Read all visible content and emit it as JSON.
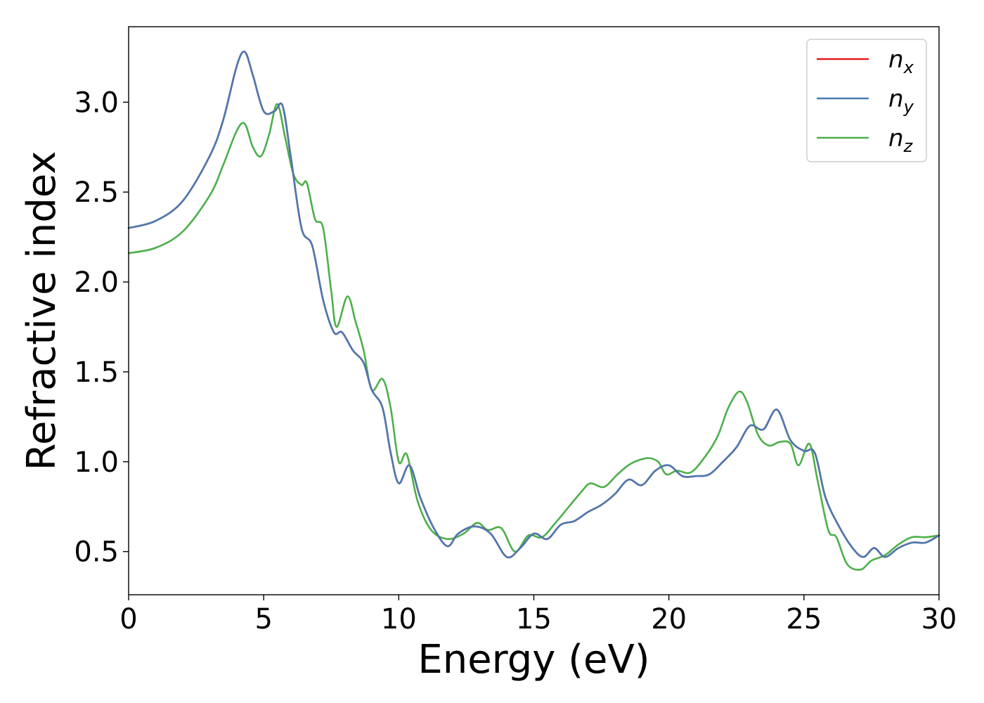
{
  "chart_data": {
    "type": "line",
    "title": "",
    "xlabel": "Energy (eV)",
    "ylabel": "Refractive index",
    "xlim": [
      0,
      30
    ],
    "ylim": [
      0.26,
      3.42
    ],
    "xticks": [
      0,
      5,
      10,
      15,
      20,
      25,
      30
    ],
    "xtick_labels": [
      "0",
      "5",
      "10",
      "15",
      "20",
      "25",
      "30"
    ],
    "yticks": [
      0.5,
      1.0,
      1.5,
      2.0,
      2.5,
      3.0
    ],
    "ytick_labels": [
      "0.5",
      "1.0",
      "1.5",
      "2.0",
      "2.5",
      "3.0"
    ],
    "grid": false,
    "legend_position": "top-right",
    "series": [
      {
        "name": "n",
        "subscript": "x",
        "color": "#e41a1c",
        "x": [
          0,
          1,
          2,
          3,
          3.5,
          4,
          4.3,
          4.6,
          5.0,
          5.4,
          5.7,
          6.0,
          6.4,
          6.8,
          7.2,
          7.6,
          7.9,
          8.3,
          8.7,
          9.0,
          9.4,
          9.7,
          10.0,
          10.4,
          10.8,
          11.3,
          11.8,
          12.2,
          12.8,
          13.4,
          14.0,
          14.5,
          15.0,
          15.5,
          16.0,
          16.5,
          17.0,
          17.5,
          18.0,
          18.5,
          19.0,
          19.5,
          20.0,
          20.5,
          21.0,
          21.5,
          22.0,
          22.5,
          23.0,
          23.5,
          24.0,
          24.5,
          25.0,
          25.4,
          25.8,
          26.3,
          26.8,
          27.2,
          27.6,
          28.0,
          28.5,
          29.0,
          29.5,
          30.0
        ],
        "y": [
          2.3,
          2.34,
          2.45,
          2.7,
          2.9,
          3.2,
          3.28,
          3.15,
          2.95,
          2.95,
          2.98,
          2.7,
          2.3,
          2.2,
          1.9,
          1.72,
          1.72,
          1.62,
          1.55,
          1.4,
          1.3,
          1.05,
          0.88,
          0.98,
          0.8,
          0.63,
          0.53,
          0.6,
          0.64,
          0.6,
          0.47,
          0.52,
          0.6,
          0.57,
          0.65,
          0.67,
          0.72,
          0.76,
          0.82,
          0.9,
          0.87,
          0.95,
          0.98,
          0.92,
          0.92,
          0.93,
          1.0,
          1.08,
          1.2,
          1.18,
          1.29,
          1.12,
          1.06,
          1.05,
          0.8,
          0.64,
          0.52,
          0.47,
          0.52,
          0.47,
          0.52,
          0.55,
          0.55,
          0.59
        ]
      },
      {
        "name": "n",
        "subscript": "y",
        "color": "#4a7ab0",
        "x": [
          0,
          1,
          2,
          3,
          3.5,
          4,
          4.3,
          4.6,
          5.0,
          5.4,
          5.7,
          6.0,
          6.4,
          6.8,
          7.2,
          7.6,
          7.9,
          8.3,
          8.7,
          9.0,
          9.4,
          9.7,
          10.0,
          10.4,
          10.8,
          11.3,
          11.8,
          12.2,
          12.8,
          13.4,
          14.0,
          14.5,
          15.0,
          15.5,
          16.0,
          16.5,
          17.0,
          17.5,
          18.0,
          18.5,
          19.0,
          19.5,
          20.0,
          20.5,
          21.0,
          21.5,
          22.0,
          22.5,
          23.0,
          23.5,
          24.0,
          24.5,
          25.0,
          25.4,
          25.8,
          26.3,
          26.8,
          27.2,
          27.6,
          28.0,
          28.5,
          29.0,
          29.5,
          30.0
        ],
        "y": [
          2.3,
          2.34,
          2.45,
          2.7,
          2.9,
          3.2,
          3.28,
          3.15,
          2.95,
          2.95,
          2.98,
          2.7,
          2.3,
          2.2,
          1.9,
          1.72,
          1.72,
          1.62,
          1.55,
          1.4,
          1.3,
          1.05,
          0.88,
          0.98,
          0.8,
          0.63,
          0.53,
          0.6,
          0.64,
          0.6,
          0.47,
          0.52,
          0.6,
          0.57,
          0.65,
          0.67,
          0.72,
          0.76,
          0.82,
          0.9,
          0.87,
          0.95,
          0.98,
          0.92,
          0.92,
          0.93,
          1.0,
          1.08,
          1.2,
          1.18,
          1.29,
          1.12,
          1.06,
          1.05,
          0.8,
          0.64,
          0.52,
          0.47,
          0.52,
          0.47,
          0.52,
          0.55,
          0.55,
          0.59
        ]
      },
      {
        "name": "n",
        "subscript": "z",
        "color": "#4daf4a",
        "x": [
          0,
          1,
          2,
          3,
          3.5,
          4,
          4.3,
          4.6,
          4.9,
          5.2,
          5.5,
          5.8,
          6.1,
          6.4,
          6.6,
          6.9,
          7.2,
          7.5,
          7.7,
          8.1,
          8.4,
          8.7,
          9.0,
          9.4,
          9.7,
          10.0,
          10.3,
          10.7,
          11.2,
          11.8,
          12.4,
          12.9,
          13.3,
          13.8,
          14.3,
          14.8,
          15.3,
          15.8,
          16.3,
          16.8,
          17.1,
          17.6,
          18.1,
          18.6,
          19.2,
          19.6,
          19.9,
          20.3,
          20.8,
          21.3,
          21.8,
          22.2,
          22.6,
          22.9,
          23.3,
          23.7,
          24.1,
          24.5,
          24.8,
          25.2,
          25.5,
          25.9,
          26.2,
          26.6,
          27.1,
          27.5,
          28.0,
          28.5,
          29.0,
          29.5,
          30.0
        ],
        "y": [
          2.16,
          2.19,
          2.28,
          2.48,
          2.65,
          2.84,
          2.88,
          2.75,
          2.7,
          2.82,
          2.99,
          2.8,
          2.6,
          2.54,
          2.55,
          2.35,
          2.3,
          1.95,
          1.75,
          1.92,
          1.78,
          1.62,
          1.4,
          1.46,
          1.3,
          1.0,
          1.04,
          0.78,
          0.62,
          0.57,
          0.6,
          0.66,
          0.62,
          0.63,
          0.5,
          0.59,
          0.58,
          0.66,
          0.75,
          0.84,
          0.88,
          0.86,
          0.93,
          0.99,
          1.02,
          1.0,
          0.93,
          0.95,
          0.94,
          1.02,
          1.14,
          1.3,
          1.39,
          1.33,
          1.15,
          1.09,
          1.11,
          1.1,
          0.98,
          1.1,
          0.9,
          0.62,
          0.58,
          0.43,
          0.4,
          0.45,
          0.48,
          0.54,
          0.58,
          0.58,
          0.59
        ]
      }
    ]
  }
}
